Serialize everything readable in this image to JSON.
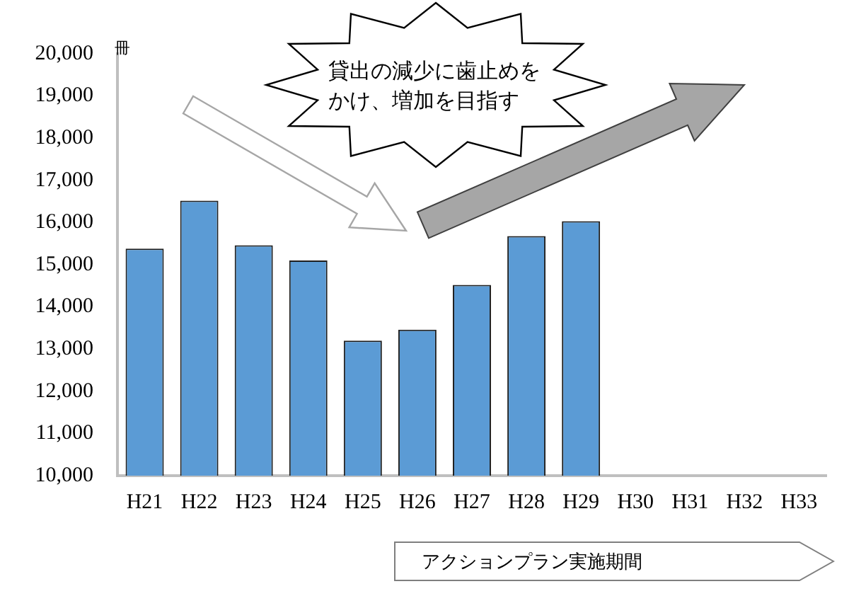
{
  "chart_data": {
    "type": "bar",
    "ylabel": "冊",
    "categories": [
      "H21",
      "H22",
      "H23",
      "H24",
      "H25",
      "H26",
      "H27",
      "H28",
      "H29",
      "H30",
      "H31",
      "H32",
      "H33"
    ],
    "values": [
      15380,
      16520,
      15460,
      15100,
      13200,
      13460,
      14520,
      15680,
      16030,
      null,
      null,
      null,
      null
    ],
    "color": "#5b9bd5",
    "ylim": [
      10000,
      20000
    ],
    "yticks": [
      {
        "value": 10000,
        "label": "10,000"
      },
      {
        "value": 11000,
        "label": "11,000"
      },
      {
        "value": 12000,
        "label": "12,000"
      },
      {
        "value": 13000,
        "label": "13,000"
      },
      {
        "value": 14000,
        "label": "14,000"
      },
      {
        "value": 15000,
        "label": "15,000"
      },
      {
        "value": 16000,
        "label": "16,000"
      },
      {
        "value": 17000,
        "label": "17,000"
      },
      {
        "value": 18000,
        "label": "18,000"
      },
      {
        "value": 19000,
        "label": "19,000"
      },
      {
        "value": 20000,
        "label": "20,000"
      }
    ],
    "grid": false,
    "legend": false,
    "annotations": [
      "貸出の減少に歯止めをかけ、増加を目指す",
      "アクションプラン実施期間"
    ]
  }
}
